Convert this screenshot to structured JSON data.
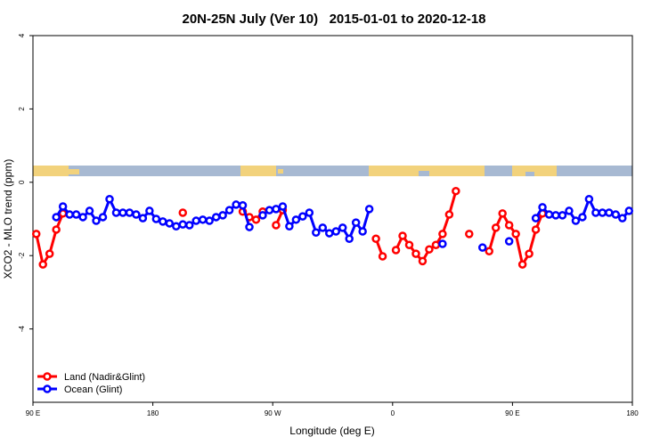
{
  "chart_data": {
    "type": "line",
    "title": "20N-25N July (Ver 10)   2015-01-01 to 2020-12-18",
    "xlabel": "Longitude (deg E)",
    "ylabel": "XCO2 - MLO trend (ppm)",
    "xlim": [
      90,
      540
    ],
    "xticks": [
      {
        "value": 90,
        "label": "90 E"
      },
      180,
      {
        "value": 270,
        "label": "90 W"
      },
      {
        "value": 360,
        "label": "0"
      },
      {
        "value": 450,
        "label": "90 E"
      },
      {
        "value": 540,
        "label": "180"
      }
    ],
    "ylim": [
      -6,
      4
    ],
    "yticks": [
      -4,
      -2,
      0,
      2,
      4
    ],
    "legend": "bottom-left",
    "series": [
      {
        "name": "Land (Nadir&Glint)",
        "color": "#ff0000",
        "x": [
          92.5,
          97.5,
          102.5,
          107.5,
          112.5,
          117.5,
          202.5,
          207.5,
          247.5,
          252.5,
          257.5,
          262.5,
          267.5,
          272.5,
          277.5,
          282.5,
          347.5,
          352.5,
          357.5,
          362.5,
          367.5,
          372.5,
          377.5,
          382.5,
          387.5,
          392.5,
          397.5,
          402.5,
          407.5,
          412.5,
          417.5,
          422.5,
          432.5,
          437.5,
          442.5,
          447.5,
          452.5,
          457.5,
          462.5,
          467.5,
          472.5
        ],
        "values": [
          -1.41,
          -2.24,
          -1.95,
          -1.29,
          -0.85,
          null,
          -0.83,
          null,
          -0.8,
          -0.95,
          -1.02,
          -0.8,
          null,
          -1.17,
          -0.76,
          null,
          -1.54,
          -2.02,
          null,
          -1.85,
          -1.46,
          -1.71,
          -1.95,
          -2.15,
          -1.83,
          -1.71,
          -1.41,
          -0.88,
          -0.24,
          null,
          -1.41,
          null,
          -1.88,
          -1.24,
          -0.85,
          -1.17,
          -1.41,
          -2.24,
          -1.95,
          -1.29,
          -0.85
        ]
      },
      {
        "name": "Ocean (Glint)",
        "color": "#0000ff",
        "x": [
          107.5,
          112.5,
          117.5,
          122.5,
          127.5,
          132.5,
          137.5,
          142.5,
          147.5,
          152.5,
          157.5,
          162.5,
          167.5,
          172.5,
          177.5,
          182.5,
          187.5,
          192.5,
          197.5,
          202.5,
          207.5,
          212.5,
          217.5,
          222.5,
          227.5,
          232.5,
          237.5,
          242.5,
          247.5,
          252.5,
          257.5,
          262.5,
          267.5,
          272.5,
          277.5,
          282.5,
          287.5,
          292.5,
          297.5,
          302.5,
          307.5,
          312.5,
          317.5,
          322.5,
          327.5,
          332.5,
          337.5,
          342.5,
          347.5,
          397.5,
          402.5,
          427.5,
          432.5,
          447.5,
          452.5,
          467.5,
          472.5,
          477.5,
          482.5,
          487.5,
          492.5,
          497.5,
          502.5,
          507.5,
          512.5,
          517.5,
          522.5,
          527.5,
          532.5,
          537.5
        ],
        "values": [
          -0.95,
          -0.66,
          -0.88,
          -0.88,
          -0.95,
          -0.78,
          -1.05,
          -0.95,
          -0.46,
          -0.83,
          -0.83,
          -0.83,
          -0.88,
          -0.98,
          -0.78,
          -1.0,
          -1.07,
          -1.12,
          -1.2,
          -1.15,
          -1.17,
          -1.05,
          -1.02,
          -1.05,
          -0.95,
          -0.9,
          -0.76,
          -0.61,
          -0.63,
          -1.22,
          null,
          -0.9,
          -0.76,
          -0.73,
          -0.66,
          -1.2,
          -1.02,
          -0.93,
          -0.83,
          -1.37,
          -1.24,
          -1.39,
          -1.34,
          -1.24,
          -1.54,
          -1.1,
          -1.34,
          -0.73,
          null,
          -1.68,
          null,
          -1.78,
          null,
          -1.61,
          null,
          -0.98,
          -0.68,
          -0.88,
          -0.9,
          -0.9,
          -0.78,
          -1.05,
          -0.95,
          -0.46,
          -0.83,
          -0.83,
          -0.83,
          -0.88,
          -0.98,
          -0.78
        ]
      }
    ]
  }
}
